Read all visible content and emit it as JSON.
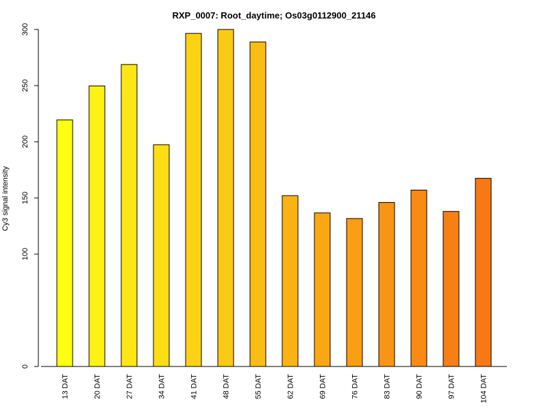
{
  "chart_data": {
    "type": "bar",
    "title": "RXP_0007: Root_daytime; Os03g0112900_21146",
    "xlabel": "",
    "ylabel": "Cy3 signal intensity",
    "categories": [
      "13 DAT",
      "20 DAT",
      "27 DAT",
      "34 DAT",
      "41 DAT",
      "48 DAT",
      "55 DAT",
      "62 DAT",
      "69 DAT",
      "76 DAT",
      "83 DAT",
      "90 DAT",
      "97 DAT",
      "104 DAT"
    ],
    "values": [
      219.5,
      249.7,
      268.8,
      197.4,
      296.5,
      300.0,
      288.9,
      152.0,
      136.7,
      131.7,
      146.0,
      157.0,
      138.0,
      167.5
    ],
    "y_ticks": [
      0,
      100,
      150,
      200,
      250,
      300
    ],
    "y_tick_labels": [
      "0",
      "100",
      "150",
      "200",
      "250",
      "300"
    ],
    "y_scale": "piecewise-linear (gap between 0 and 100)",
    "grid": false,
    "legend": "none",
    "colors": [
      "#FFFF14",
      "#FEF214",
      "#FEE614",
      "#FDDD14",
      "#FDD214",
      "#FCC914",
      "#FBBC14",
      "#FBB314",
      "#FAA714",
      "#FA9E14",
      "#F99514",
      "#F98A14",
      "#F87F14",
      "#F87814"
    ]
  }
}
